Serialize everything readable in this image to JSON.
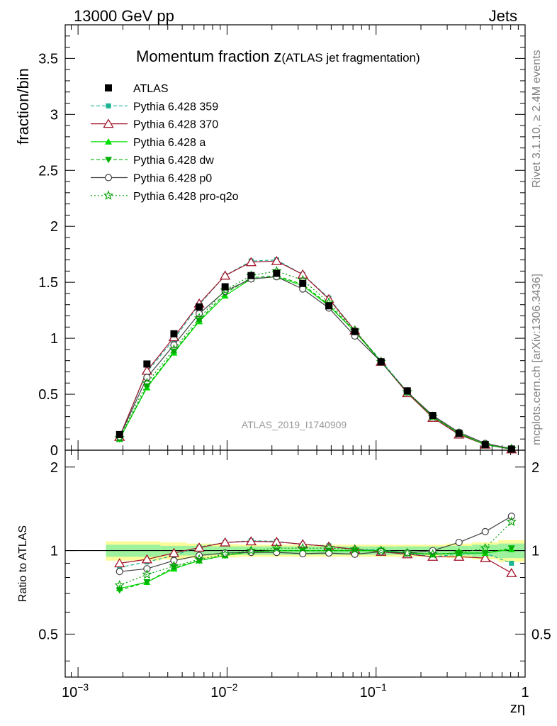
{
  "header": {
    "left": "13000 GeV pp",
    "right": "Jets"
  },
  "side_labels": {
    "rivet": "Rivet 3.1.10, ≥ 2.4M events",
    "mcplots": "mcplots.cern.ch [arXiv:1306.3436]"
  },
  "chart_data": {
    "type": "line",
    "title": "Momentum fraction z",
    "title_suffix": "(ATLAS jet fragmentation)",
    "analysis_label": "ATLAS_2019_I1740909",
    "xlabel": "zη",
    "ylabel": "fraction/bin",
    "ratio_ylabel": "Ratio to ATLAS",
    "x_scale": "log",
    "xlim": [
      0.00082,
      1.0
    ],
    "ylim": [
      0,
      3.8
    ],
    "ratio_ylim": [
      0.35,
      2.3
    ],
    "x_ticks": [
      {
        "value": 0.001,
        "base": "10",
        "exp": "−3"
      },
      {
        "value": 0.01,
        "base": "10",
        "exp": "−2"
      },
      {
        "value": 0.1,
        "base": "10",
        "exp": "−1"
      },
      {
        "value": 1,
        "base": "1",
        "exp": ""
      }
    ],
    "y_ticks": [
      "0",
      "0.5",
      "1",
      "1.5",
      "2",
      "2.5",
      "3",
      "3.5"
    ],
    "ratio_y_ticks": [
      "0.5",
      "1",
      "2"
    ],
    "legend_position": "top-left",
    "x": [
      0.0019,
      0.0029,
      0.0044,
      0.0065,
      0.0097,
      0.0145,
      0.0215,
      0.0322,
      0.0482,
      0.072,
      0.108,
      0.162,
      0.24,
      0.36,
      0.54,
      0.81
    ],
    "reference": {
      "name": "ATLAS",
      "values": [
        0.14,
        0.77,
        1.04,
        1.28,
        1.46,
        1.56,
        1.58,
        1.49,
        1.29,
        1.06,
        0.79,
        0.53,
        0.31,
        0.15,
        0.05,
        0.01
      ],
      "band_inner": [
        0.05,
        0.05,
        0.04,
        0.04,
        0.035,
        0.035,
        0.035,
        0.035,
        0.035,
        0.035,
        0.035,
        0.035,
        0.035,
        0.04,
        0.05,
        0.06
      ],
      "band_outer": [
        0.08,
        0.08,
        0.07,
        0.06,
        0.055,
        0.05,
        0.05,
        0.05,
        0.05,
        0.05,
        0.05,
        0.05,
        0.05,
        0.06,
        0.07,
        0.09
      ]
    },
    "series": [
      {
        "name": "Pythia 6.428 359",
        "color": "#1ab394",
        "dash": "5,3",
        "marker": "square-small",
        "values": [
          0.12,
          0.7,
          0.99,
          1.3,
          1.56,
          1.69,
          1.7,
          1.57,
          1.36,
          1.07,
          0.8,
          0.52,
          0.29,
          0.14,
          0.05,
          0.009
        ],
        "ratio": [
          0.87,
          0.91,
          0.96,
          1.03,
          1.07,
          1.085,
          1.08,
          1.05,
          1.04,
          1.01,
          1.005,
          0.98,
          0.95,
          0.97,
          0.98,
          0.9
        ]
      },
      {
        "name": "Pythia 6.428 370",
        "color": "#a0122a",
        "dash": "",
        "marker": "triangle-open",
        "values": [
          0.12,
          0.71,
          1.01,
          1.31,
          1.56,
          1.68,
          1.69,
          1.57,
          1.35,
          1.07,
          0.79,
          0.51,
          0.29,
          0.14,
          0.05,
          0.008
        ],
        "ratio": [
          0.9,
          0.93,
          0.98,
          1.025,
          1.07,
          1.08,
          1.075,
          1.055,
          1.035,
          1.01,
          0.99,
          0.97,
          0.95,
          0.95,
          0.94,
          0.83
        ]
      },
      {
        "name": "Pythia 6.428 a",
        "color": "#00e000",
        "dash": "",
        "marker": "triangle-up",
        "values": [
          0.1,
          0.56,
          0.87,
          1.15,
          1.38,
          1.53,
          1.55,
          1.47,
          1.29,
          1.06,
          0.79,
          0.52,
          0.3,
          0.15,
          0.05,
          0.011
        ],
        "ratio": [
          0.73,
          0.77,
          0.86,
          0.92,
          0.96,
          0.99,
          1.0,
          1.0,
          1.0,
          1.0,
          1.0,
          0.98,
          0.97,
          0.98,
          0.98,
          1.01
        ]
      },
      {
        "name": "Pythia 6.428 dw",
        "color": "#00b000",
        "dash": "5,3",
        "marker": "triangle-down",
        "values": [
          0.1,
          0.57,
          0.88,
          1.16,
          1.4,
          1.54,
          1.56,
          1.48,
          1.3,
          1.06,
          0.79,
          0.52,
          0.3,
          0.15,
          0.05,
          0.011
        ],
        "ratio": [
          0.72,
          0.77,
          0.87,
          0.92,
          0.96,
          0.99,
          1.0,
          1.0,
          1.0,
          1.0,
          1.0,
          0.98,
          0.97,
          0.98,
          0.98,
          1.02
        ]
      },
      {
        "name": "Pythia 6.428 p0",
        "color": "#404040",
        "dash": "",
        "marker": "circle-open",
        "values": [
          0.12,
          0.65,
          0.94,
          1.22,
          1.42,
          1.53,
          1.55,
          1.44,
          1.27,
          1.02,
          0.79,
          0.52,
          0.31,
          0.16,
          0.06,
          0.013
        ],
        "ratio": [
          0.84,
          0.86,
          0.92,
          0.96,
          0.98,
          0.985,
          0.985,
          0.975,
          0.98,
          0.97,
          0.99,
          0.98,
          1.0,
          1.07,
          1.17,
          1.33
        ]
      },
      {
        "name": "Pythia 6.428 pro-q2o",
        "color": "#00a000",
        "dash": "2,3",
        "marker": "star-open",
        "values": [
          0.11,
          0.6,
          0.9,
          1.18,
          1.43,
          1.56,
          1.6,
          1.52,
          1.32,
          1.07,
          0.79,
          0.52,
          0.3,
          0.15,
          0.05,
          0.012
        ],
        "ratio": [
          0.75,
          0.82,
          0.88,
          0.93,
          0.97,
          1.0,
          1.02,
          1.02,
          1.02,
          1.01,
          1.0,
          0.98,
          0.97,
          0.98,
          1.02,
          1.27
        ]
      }
    ]
  }
}
